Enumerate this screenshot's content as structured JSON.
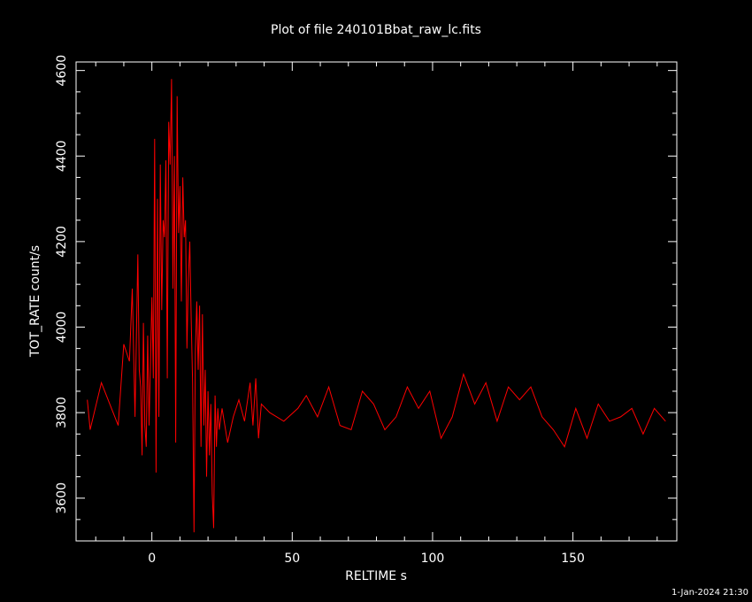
{
  "chart_data": {
    "type": "line",
    "title": "Plot of file 240101Bbat_raw_lc.fits",
    "xlabel": "RELTIME  s",
    "ylabel": "TOT_RATE  count/s",
    "xlim": [
      -27,
      187
    ],
    "ylim": [
      3500,
      4620
    ],
    "x_ticks": [
      0,
      50,
      100,
      150
    ],
    "y_ticks": [
      3600,
      3800,
      4000,
      4200,
      4400,
      4600
    ],
    "x_minor_step": 10,
    "y_minor_step": 50,
    "grid": false,
    "line_color": "#ff0000",
    "series": [
      {
        "x": [
          -23,
          -22,
          -18,
          -15,
          -12,
          -10,
          -8,
          -7,
          -6,
          -5,
          -4.5,
          -4,
          -3.5,
          -3,
          -2.5,
          -2,
          -1.5,
          -1,
          -0.5,
          0,
          0.5,
          1,
          1.5,
          2,
          2.5,
          3,
          3.5,
          4,
          4.5,
          5,
          5.5,
          6,
          6.5,
          7,
          7.5,
          8,
          8.5,
          9,
          9.5,
          10,
          10.5,
          11,
          11.5,
          12,
          12.5,
          13,
          13.5,
          14,
          14.5,
          15,
          15.5,
          16,
          16.5,
          17,
          17.5,
          18,
          18.5,
          19,
          19.5,
          20,
          20.5,
          21,
          21.5,
          22,
          22.5,
          23,
          23.5,
          24,
          25,
          27,
          29,
          31,
          33,
          35,
          36,
          37,
          38,
          39,
          42,
          47,
          52,
          55,
          59,
          63,
          67,
          71,
          75,
          79,
          83,
          87,
          91,
          95,
          99,
          103,
          107,
          111,
          115,
          119,
          123,
          127,
          131,
          135,
          139,
          143,
          147,
          151,
          155,
          159,
          163,
          167,
          171,
          175,
          179,
          183
        ],
        "y": [
          3830,
          3760,
          3870,
          3820,
          3770,
          3960,
          3920,
          4090,
          3790,
          4170,
          3900,
          3860,
          3700,
          4010,
          3770,
          3720,
          3980,
          3770,
          3920,
          4070,
          3880,
          4440,
          3660,
          4300,
          3790,
          4380,
          4040,
          4250,
          4210,
          4390,
          3880,
          4480,
          4380,
          4580,
          4090,
          4400,
          3730,
          4540,
          4220,
          4330,
          4060,
          4350,
          4210,
          4250,
          3950,
          4110,
          4200,
          4020,
          3870,
          3520,
          3940,
          4060,
          3900,
          4050,
          3720,
          4030,
          3770,
          3900,
          3650,
          3850,
          3700,
          3820,
          3610,
          3530,
          3840,
          3720,
          3810,
          3760,
          3810,
          3730,
          3790,
          3830,
          3780,
          3870,
          3770,
          3880,
          3740,
          3820,
          3800,
          3780,
          3810,
          3840,
          3790,
          3860,
          3770,
          3760,
          3850,
          3820,
          3760,
          3790,
          3860,
          3810,
          3850,
          3740,
          3790,
          3890,
          3820,
          3870,
          3780,
          3860,
          3830,
          3860,
          3790,
          3760,
          3720,
          3810,
          3740,
          3820,
          3780,
          3790,
          3810,
          3750,
          3810,
          3780
        ]
      }
    ]
  },
  "timestamp": "1-Jan-2024 21:30"
}
